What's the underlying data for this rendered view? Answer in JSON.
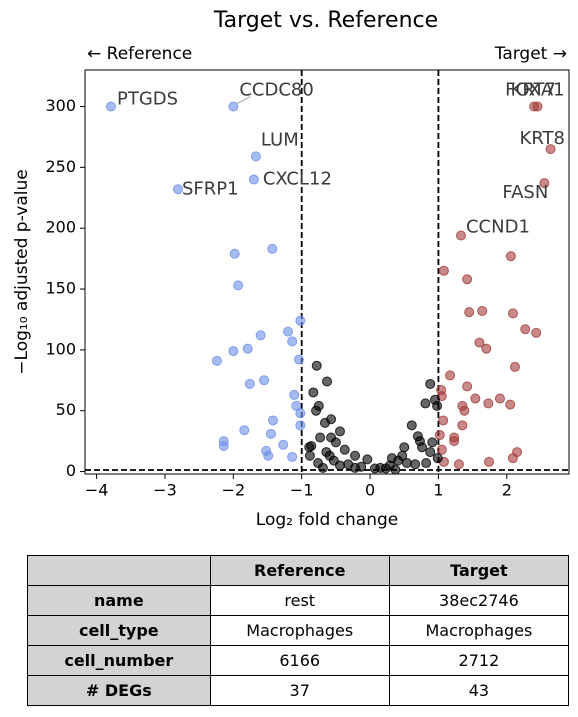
{
  "chart_data": {
    "type": "scatter",
    "title": "Target vs. Reference",
    "left_label": "← Reference",
    "right_label": "Target →",
    "x_label": "Log₂ fold change",
    "y_label": "−Log₁₀ adjusted p-value",
    "xlim": [
      -4.17,
      2.91
    ],
    "ylim": [
      -2,
      330
    ],
    "xticks": [
      {
        "value": -4,
        "label": "−4"
      },
      {
        "value": -3,
        "label": "−3"
      },
      {
        "value": -2,
        "label": "−2"
      },
      {
        "value": -1,
        "label": "−1"
      },
      0,
      1,
      2
    ],
    "yticks": [
      0,
      50,
      100,
      150,
      200,
      250,
      300
    ],
    "vlines": [
      -1,
      1
    ],
    "hline": 1.3,
    "series": [
      {
        "color": "#6a8ee8",
        "x": [
          -3.79,
          -2.0,
          -1.67,
          -1.7,
          -2.81,
          -1.43,
          -1.98,
          -1.93,
          -1.02,
          -1.2,
          -1.14,
          -1.6,
          -1.04,
          -1.79,
          -2.0,
          -2.24,
          -1.55,
          -1.76,
          -1.11,
          -1.08,
          -1.42,
          -1.02,
          -1.84,
          -1.45,
          -1.27,
          -2.14,
          -2.14,
          -1.52,
          -1.49,
          -1.02,
          -1.14
        ],
        "values": [
          300,
          300,
          259,
          240,
          232,
          183,
          179,
          153,
          124,
          115,
          107,
          112,
          92,
          101,
          99,
          91,
          75,
          72,
          63,
          54,
          42,
          48,
          34,
          31,
          22,
          25,
          21,
          17,
          13,
          38,
          12
        ]
      },
      {
        "color": "#a33a3a",
        "x": [
          2.4,
          2.45,
          2.64,
          2.55,
          1.33,
          2.06,
          1.08,
          1.42,
          1.45,
          1.64,
          2.09,
          2.27,
          2.43,
          1.6,
          1.7,
          2.12,
          1.17,
          1.04,
          1.42,
          1.35,
          1.38,
          1.05,
          1.54,
          1.9,
          1.73,
          2.05,
          1.35,
          1.07,
          1.23,
          1.23,
          1.02,
          1.05,
          2.15,
          2.09,
          1.08,
          1.3,
          1.74
        ],
        "values": [
          300,
          300,
          265,
          237,
          194,
          177,
          165,
          158,
          131,
          132,
          130,
          117,
          114,
          106,
          101,
          86,
          79,
          67,
          70,
          54,
          50,
          62,
          60,
          60,
          56,
          55,
          38,
          42,
          28,
          25,
          30,
          18,
          16,
          11,
          8,
          6,
          8
        ]
      },
      {
        "color": "#000000",
        "x": [
          -0.78,
          -0.83,
          -0.63,
          -0.75,
          -0.79,
          -0.57,
          -0.66,
          -0.44,
          -0.73,
          -0.57,
          -0.5,
          -0.86,
          -0.37,
          -0.64,
          -0.88,
          -0.22,
          -0.04,
          -0.53,
          -0.76,
          -0.32,
          -0.13,
          0.07,
          0.15,
          0.29,
          0.47,
          0.54,
          0.61,
          0.7,
          0.73,
          0.88,
          0.81,
          0.95,
          0.98,
          0.76,
          0.91,
          0.88,
          0.99,
          0.66,
          0.37,
          0.23,
          -0.22,
          -0.44,
          -0.69,
          0.41,
          0.5,
          0.32,
          0.82,
          -0.89,
          -0.59
        ],
        "values": [
          87,
          65,
          74,
          54,
          50,
          43,
          40,
          33,
          28,
          28,
          24,
          21,
          18,
          16,
          13,
          13,
          10,
          9,
          7,
          6,
          4,
          2.5,
          3,
          5,
          13,
          7,
          38,
          29,
          25,
          72,
          56,
          59,
          54,
          20,
          24,
          16,
          11,
          6,
          1.6,
          2.5,
          3,
          5,
          3,
          9,
          20,
          11,
          7,
          20,
          13
        ]
      }
    ],
    "annotations": [
      {
        "text": "PTGDS",
        "x": -3.79,
        "y": 300
      },
      {
        "text": "CCDC80",
        "x": -2.0,
        "y": 300
      },
      {
        "text": "LUM",
        "x": -1.67,
        "y": 259
      },
      {
        "text": "CXCL12",
        "x": -1.7,
        "y": 240
      },
      {
        "text": "SFRP1",
        "x": -2.81,
        "y": 232
      },
      {
        "text": "FOXA1",
        "x": 2.4,
        "y": 300
      },
      {
        "text": "KRT7",
        "x": 2.45,
        "y": 300
      },
      {
        "text": "KRT8",
        "x": 2.64,
        "y": 265
      },
      {
        "text": "FASN",
        "x": 2.55,
        "y": 237
      },
      {
        "text": "CCND1",
        "x": 1.33,
        "y": 194
      }
    ]
  },
  "table": {
    "headers": [
      "Reference",
      "Target"
    ],
    "rows": [
      [
        "name",
        "rest",
        "38ec2746"
      ],
      [
        "cell_type",
        "Macrophages",
        "Macrophages"
      ],
      [
        "cell_number",
        "6166",
        "2712"
      ],
      [
        "# DEGs",
        "37",
        "43"
      ]
    ]
  }
}
